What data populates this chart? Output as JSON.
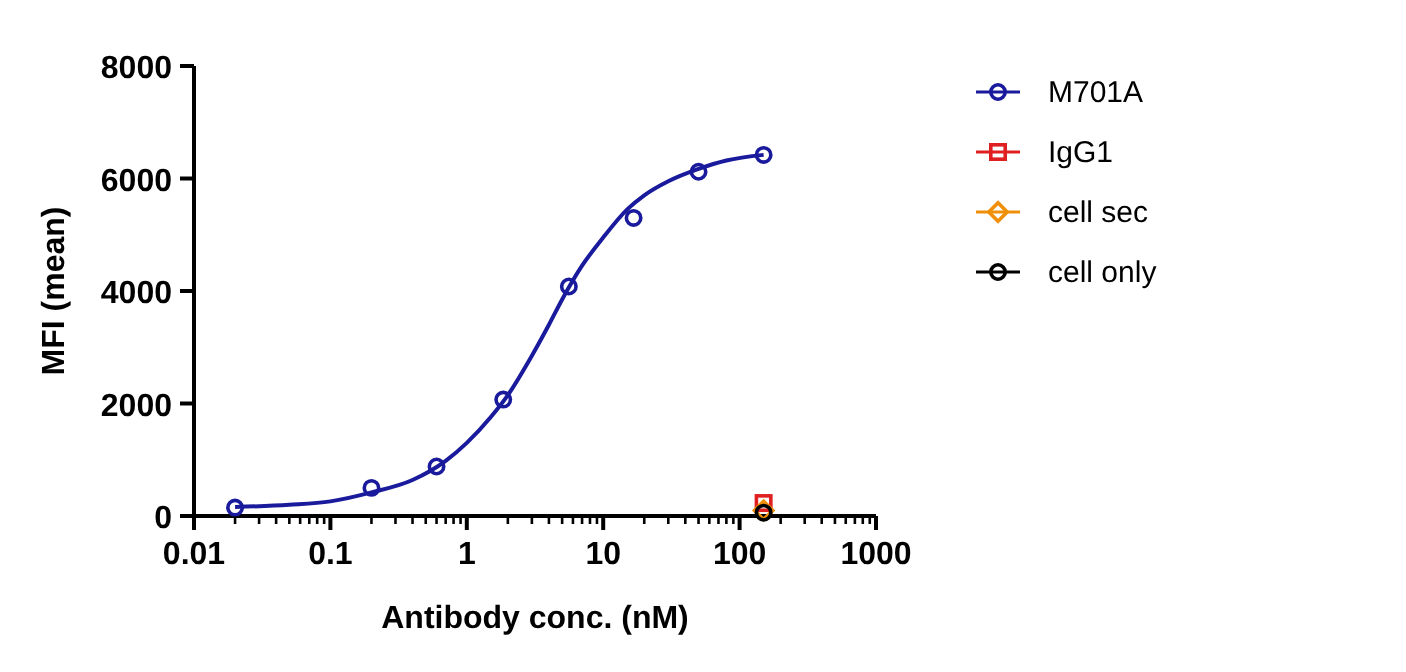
{
  "chart_data": {
    "type": "scatter",
    "xlabel": "Antibody conc. (nM)",
    "ylabel": "MFI (mean)",
    "log": "x",
    "xlim": [
      0.01,
      1000
    ],
    "ylim": [
      0,
      8000
    ],
    "xticks": [
      0.01,
      {
        "value": 0.02,
        "label": null
      },
      {
        "value": 0.03,
        "label": null
      },
      {
        "value": 0.04,
        "label": null
      },
      {
        "value": 0.05,
        "label": null
      },
      {
        "value": 0.06,
        "label": null
      },
      {
        "value": 0.07,
        "label": null
      },
      {
        "value": 0.08,
        "label": null
      },
      {
        "value": 0.09,
        "label": null
      },
      0.1,
      {
        "value": 0.2,
        "label": null
      },
      {
        "value": 0.3,
        "label": null
      },
      {
        "value": 0.4,
        "label": null
      },
      {
        "value": 0.5,
        "label": null
      },
      {
        "value": 0.6,
        "label": null
      },
      {
        "value": 0.7,
        "label": null
      },
      {
        "value": 0.8,
        "label": null
      },
      {
        "value": 0.9,
        "label": null
      },
      1,
      {
        "value": 2,
        "label": null
      },
      {
        "value": 3,
        "label": null
      },
      {
        "value": 4,
        "label": null
      },
      {
        "value": 5,
        "label": null
      },
      {
        "value": 6,
        "label": null
      },
      {
        "value": 7,
        "label": null
      },
      {
        "value": 8,
        "label": null
      },
      {
        "value": 9,
        "label": null
      },
      10,
      {
        "value": 20,
        "label": null
      },
      {
        "value": 30,
        "label": null
      },
      {
        "value": 40,
        "label": null
      },
      {
        "value": 50,
        "label": null
      },
      {
        "value": 60,
        "label": null
      },
      {
        "value": 70,
        "label": null
      },
      {
        "value": 80,
        "label": null
      },
      {
        "value": 90,
        "label": null
      },
      100,
      {
        "value": 200,
        "label": null
      },
      {
        "value": 300,
        "label": null
      },
      {
        "value": 400,
        "label": null
      },
      {
        "value": 500,
        "label": null
      },
      {
        "value": 600,
        "label": null
      },
      {
        "value": 700,
        "label": null
      },
      {
        "value": 800,
        "label": null
      },
      {
        "value": 900,
        "label": null
      },
      1000
    ],
    "yticks": [
      0,
      2000,
      4000,
      6000,
      8000
    ],
    "grid": false,
    "legend": "right",
    "series": [
      {
        "type": "line",
        "color": "#1a1a9c",
        "marker": "none",
        "x": [
          0.02,
          0.05,
          0.1,
          0.2,
          0.4,
          0.7,
          1,
          1.5,
          2,
          3,
          4,
          5,
          7,
          10,
          15,
          20,
          30,
          50,
          80,
          150
        ],
        "values": [
          160,
          200,
          260,
          420,
          640,
          980,
          1300,
          1760,
          2150,
          2850,
          3400,
          3850,
          4450,
          4950,
          5450,
          5700,
          5950,
          6170,
          6320,
          6420
        ]
      },
      {
        "name": "M701A",
        "color": "#1a1a9c",
        "marker": "circle",
        "x": [
          0.02,
          0.2,
          0.6,
          1.85,
          5.6,
          16.7,
          50,
          150
        ],
        "values": [
          150,
          500,
          880,
          2070,
          4080,
          5300,
          6120,
          6420
        ]
      },
      {
        "name": "IgG1",
        "color": "#e02020",
        "marker": "square",
        "x": [
          150
        ],
        "values": [
          230
        ]
      },
      {
        "name": "cell sec",
        "color": "#f0900a",
        "marker": "diamond",
        "x": [
          150
        ],
        "values": [
          100
        ]
      },
      {
        "name": "cell only",
        "color": "#000000",
        "marker": "circle",
        "x": [
          150
        ],
        "values": [
          60
        ]
      }
    ]
  }
}
